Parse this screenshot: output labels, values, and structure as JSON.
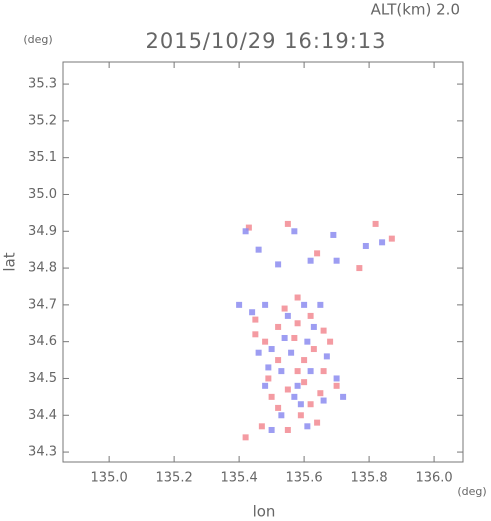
{
  "chart_data": {
    "type": "scatter",
    "title": "2015/10/29 16:19:13",
    "subtitle": "ALT(km) 2.0",
    "x_label": "lon",
    "y_label": "lat",
    "x_unit": "(deg)",
    "y_unit": "(deg)",
    "xlim": [
      134.858,
      136.089
    ],
    "ylim": [
      34.273,
      35.36
    ],
    "xticks": [
      {
        "value": 135,
        "label": "135.0"
      },
      135.2,
      135.4,
      135.6,
      135.8,
      {
        "value": 136,
        "label": "136.0"
      }
    ],
    "yticks": [
      34.3,
      34.4,
      34.5,
      34.6,
      34.7,
      34.8,
      34.9,
      {
        "value": 35,
        "label": "35.0"
      },
      35.1,
      35.2,
      35.3
    ],
    "series": [
      {
        "color": "#f28a92",
        "x": [
          135.43,
          135.55,
          135.82,
          135.87,
          135.77,
          135.64,
          135.58,
          135.45,
          135.52,
          135.62,
          135.66,
          135.48,
          135.57,
          135.63,
          135.52,
          135.58,
          135.49,
          135.55,
          135.6,
          135.65,
          135.52,
          135.59,
          135.64,
          135.47,
          135.55,
          135.42,
          135.6,
          135.54,
          135.68,
          135.5,
          135.62,
          135.45,
          135.66,
          135.58,
          135.7
        ],
        "values": [
          34.91,
          34.92,
          34.92,
          34.88,
          34.8,
          34.84,
          34.72,
          34.66,
          34.64,
          34.67,
          34.63,
          34.6,
          34.61,
          34.58,
          34.55,
          34.52,
          34.5,
          34.47,
          34.49,
          34.46,
          34.42,
          34.4,
          34.38,
          34.37,
          34.36,
          34.34,
          34.55,
          34.69,
          34.6,
          34.45,
          34.43,
          34.62,
          34.52,
          34.65,
          34.48
        ]
      },
      {
        "color": "#8c8cf0",
        "x": [
          135.42,
          135.57,
          135.69,
          135.79,
          135.84,
          135.46,
          135.52,
          135.62,
          135.7,
          135.4,
          135.48,
          135.6,
          135.55,
          135.63,
          135.5,
          135.61,
          135.56,
          135.53,
          135.62,
          135.7,
          135.48,
          135.57,
          135.66,
          135.53,
          135.61,
          135.5,
          135.44,
          135.67,
          135.58,
          135.65,
          135.54,
          135.49,
          135.59,
          135.72,
          135.46
        ],
        "values": [
          34.9,
          34.9,
          34.89,
          34.86,
          34.87,
          34.85,
          34.81,
          34.82,
          34.82,
          34.7,
          34.7,
          34.7,
          34.67,
          34.64,
          34.58,
          34.6,
          34.57,
          34.52,
          34.52,
          34.5,
          34.48,
          34.45,
          34.44,
          34.4,
          34.37,
          34.36,
          34.68,
          34.56,
          34.48,
          34.7,
          34.61,
          34.53,
          34.43,
          34.45,
          34.57
        ]
      }
    ]
  }
}
